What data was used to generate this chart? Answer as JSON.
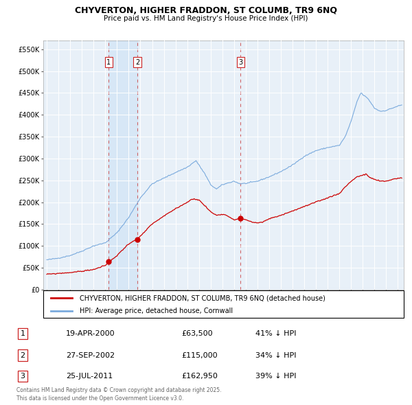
{
  "title1": "CHYVERTON, HIGHER FRADDON, ST COLUMB, TR9 6NQ",
  "title2": "Price paid vs. HM Land Registry's House Price Index (HPI)",
  "ylabel_ticks": [
    "£0",
    "£50K",
    "£100K",
    "£150K",
    "£200K",
    "£250K",
    "£300K",
    "£350K",
    "£400K",
    "£450K",
    "£500K",
    "£550K"
  ],
  "ytick_vals": [
    0,
    50000,
    100000,
    150000,
    200000,
    250000,
    300000,
    350000,
    400000,
    450000,
    500000,
    550000
  ],
  "ylim": [
    0,
    570000
  ],
  "xlim_start": 1994.7,
  "xlim_end": 2025.5,
  "hpi_color": "#7aaadd",
  "price_color": "#cc0000",
  "plot_bg": "#e8f0f8",
  "legend_label_red": "CHYVERTON, HIGHER FRADDON, ST COLUMB, TR9 6NQ (detached house)",
  "legend_label_blue": "HPI: Average price, detached house, Cornwall",
  "transactions": [
    {
      "id": 1,
      "date": "19-APR-2000",
      "x": 2000.29,
      "price": 63500,
      "label_price": "£63,500",
      "pct": "41% ↓ HPI"
    },
    {
      "id": 2,
      "date": "27-SEP-2002",
      "x": 2002.74,
      "price": 115000,
      "label_price": "£115,000",
      "pct": "34% ↓ HPI"
    },
    {
      "id": 3,
      "date": "25-JUL-2011",
      "x": 2011.56,
      "price": 162950,
      "label_price": "£162,950",
      "pct": "39% ↓ HPI"
    }
  ],
  "footer": "Contains HM Land Registry data © Crown copyright and database right 2025.\nThis data is licensed under the Open Government Licence v3.0."
}
